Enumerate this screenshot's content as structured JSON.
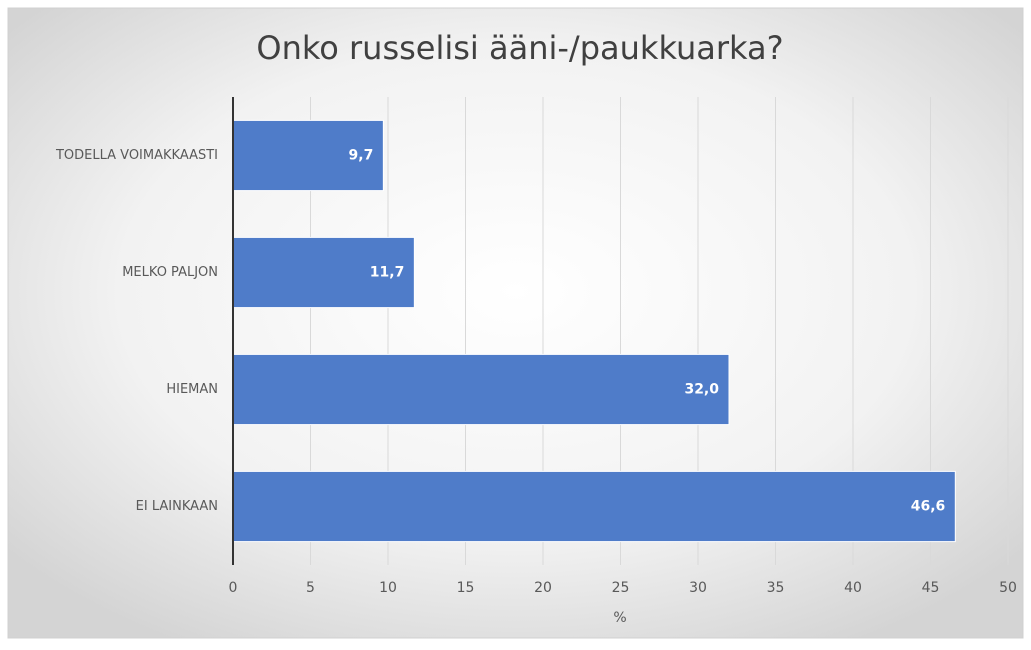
{
  "chart_data": {
    "type": "hbar",
    "title": "Onko russelisi ääni-/paukkuarka?",
    "categories": [
      "TODELLA VOIMAKKAASTI",
      "MELKO PALJON",
      "HIEMAN",
      "EI LAINKAAN"
    ],
    "values": [
      9.7,
      11.7,
      32.0,
      46.6
    ],
    "value_labels": [
      "9,7",
      "11,7",
      "32,0",
      "46,6"
    ],
    "color": "#4f7cc9",
    "x_label": "%",
    "xlim": [
      0,
      50
    ],
    "xticks": [
      0,
      5,
      10,
      15,
      20,
      25,
      30,
      35,
      40,
      45,
      50
    ],
    "grid": true
  }
}
